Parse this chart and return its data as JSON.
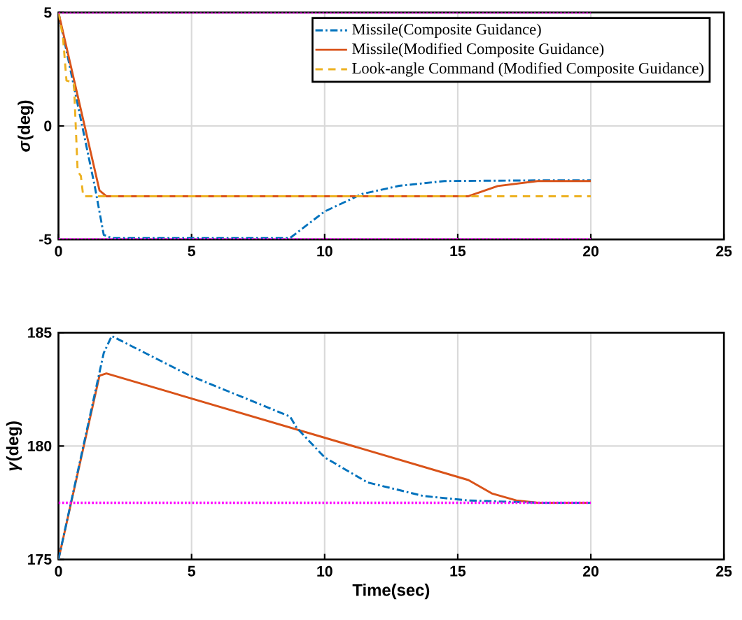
{
  "chart_data": [
    {
      "type": "line",
      "ylabel": "*σ*(deg)",
      "xlim": [
        0,
        25
      ],
      "ylim": [
        -5,
        5
      ],
      "xticks": [
        0,
        5,
        10,
        15,
        20,
        25
      ],
      "yticks": [
        -5,
        0,
        5
      ],
      "grid": true,
      "legend": "top right",
      "marker": "none",
      "series": [
        {
          "name": "Missile(Composite Guidance)",
          "color": "#0072bd",
          "line_style": "dashdot",
          "x": [
            0,
            1.36,
            1.7,
            2,
            8.7,
            10,
            11.4,
            12.8,
            14.5,
            18,
            20
          ],
          "values": [
            5,
            -2.64,
            -4.8,
            -4.94,
            -4.94,
            -3.77,
            -3.0,
            -2.64,
            -2.43,
            -2.4,
            -2.4
          ]
        },
        {
          "name": "Missile(Modified Composite Guidance)",
          "color": "#d95319",
          "line_style": "solid",
          "x": [
            0,
            1.54,
            1.8,
            15.4,
            16.5,
            18,
            20
          ],
          "values": [
            5,
            -2.84,
            -3.1,
            -3.1,
            -2.65,
            -2.43,
            -2.43
          ]
        },
        {
          "name": "Look-angle Command (Modified Composite Guidance)",
          "color": "#edb120",
          "line_style": "dashed",
          "x": [
            0,
            0.17,
            0.3,
            0.58,
            0.72,
            0.84,
            0.93,
            20
          ],
          "values": [
            5,
            3.9,
            2.0,
            1.9,
            -2.0,
            -2.2,
            -3.1,
            -3.1
          ]
        },
        {
          "color": "#ff00ff",
          "line_style": "dotted",
          "x": [
            0,
            20
          ],
          "values": [
            5,
            5
          ]
        },
        {
          "color": "#ff00ff",
          "line_style": "dotted",
          "x": [
            0,
            20
          ],
          "values": [
            -5,
            -5
          ]
        }
      ]
    },
    {
      "type": "line",
      "xlabel": "Time(sec)",
      "ylabel": "*γ*(deg)",
      "xlim": [
        0,
        25
      ],
      "ylim": [
        175,
        185
      ],
      "xticks": [
        0,
        5,
        10,
        15,
        20,
        25
      ],
      "yticks": [
        175,
        180,
        185
      ],
      "grid": true,
      "marker": "none",
      "series": [
        {
          "color": "#0072bd",
          "line_style": "dashdot",
          "x": [
            0,
            1.7,
            2,
            4.94,
            8.7,
            8.95,
            10,
            11.6,
            13.7,
            15.4,
            18,
            20
          ],
          "values": [
            175,
            184.1,
            184.85,
            183.1,
            181.3,
            180.8,
            179.5,
            178.4,
            177.8,
            177.6,
            177.5,
            177.5
          ]
        },
        {
          "color": "#d95319",
          "line_style": "solid",
          "x": [
            0,
            1.54,
            1.8,
            15.4,
            16.3,
            17.2,
            18,
            20
          ],
          "values": [
            175,
            183.1,
            183.2,
            178.5,
            177.9,
            177.6,
            177.5,
            177.5
          ]
        },
        {
          "color": "#ff00ff",
          "line_style": "dotted",
          "x": [
            0,
            20
          ],
          "values": [
            177.5,
            177.5
          ]
        }
      ]
    }
  ]
}
